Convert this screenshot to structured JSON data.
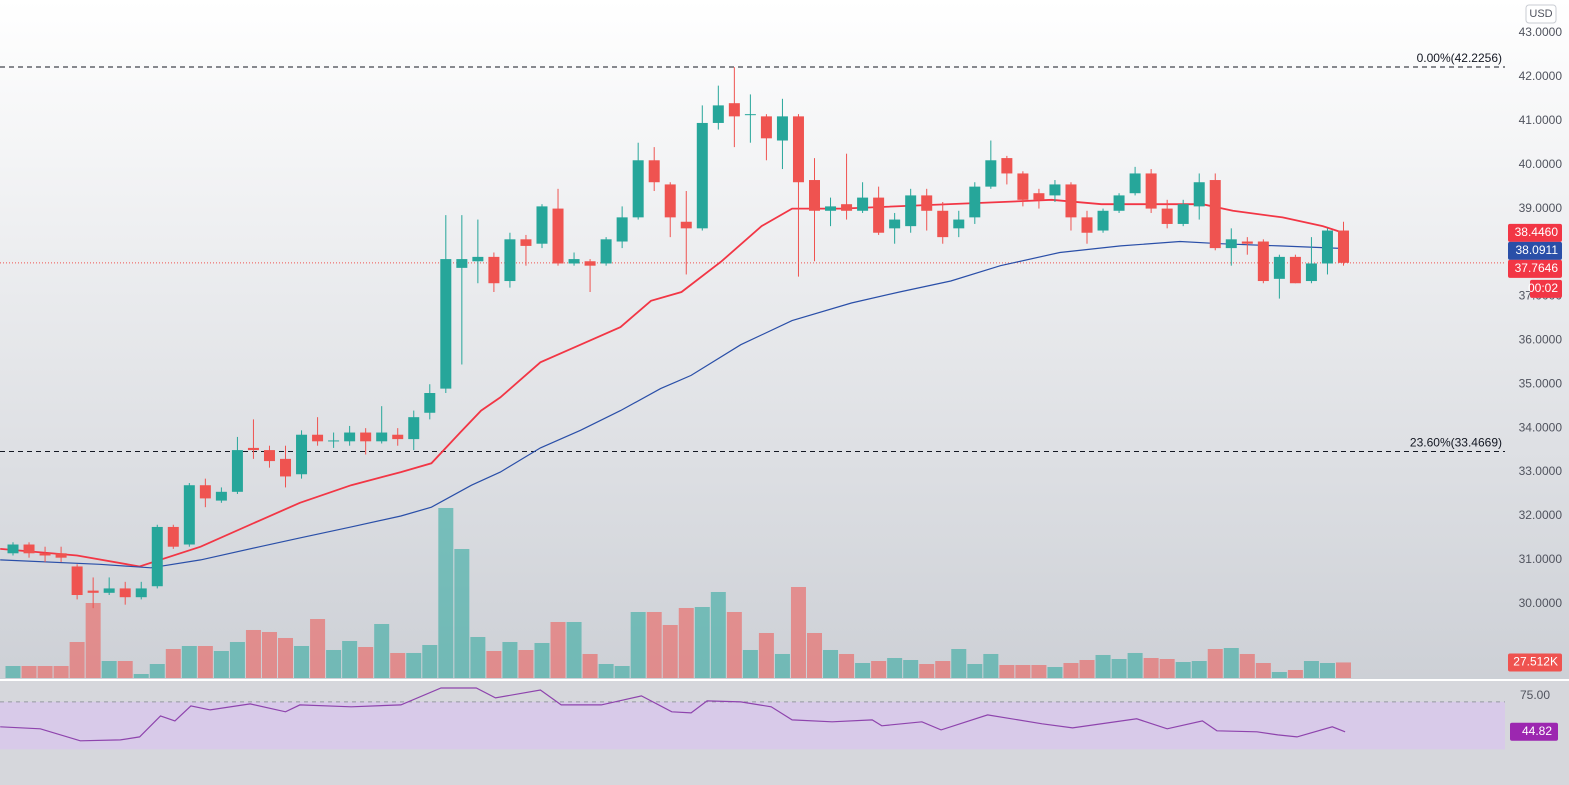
{
  "chart_data": [
    {
      "type": "candlestick",
      "currency": "USD",
      "up_color": "#26a69a",
      "down_color": "#ef5350",
      "ylim": [
        28.31,
        43.75
      ],
      "yticks": [
        {
          "value": 30,
          "label": "30.0000"
        },
        {
          "value": 31,
          "label": "31.0000"
        },
        {
          "value": 32,
          "label": "32.0000"
        },
        {
          "value": 33,
          "label": "33.0000"
        },
        {
          "value": 34,
          "label": "34.0000"
        },
        {
          "value": 35,
          "label": "35.0000"
        },
        {
          "value": 36,
          "label": "36.0000"
        },
        {
          "value": 37,
          "label": "37.0000"
        },
        {
          "value": 38,
          "label": "38.0000"
        },
        {
          "value": 39,
          "label": "39.0000"
        },
        {
          "value": 40,
          "label": "40.0000"
        },
        {
          "value": 41,
          "label": "41.0000"
        },
        {
          "value": 42,
          "label": "42.0000"
        },
        {
          "value": 43,
          "label": "43.0000"
        }
      ],
      "open": [
        31.15,
        31.35,
        31.15,
        31.15,
        30.85,
        30.3,
        30.25,
        30.35,
        30.15,
        30.4,
        31.75,
        31.35,
        32.7,
        32.35,
        32.55,
        33.55,
        33.5,
        33.3,
        32.95,
        33.85,
        33.7,
        33.7,
        33.9,
        33.7,
        33.85,
        33.75,
        34.35,
        34.9,
        37.65,
        37.8,
        37.9,
        37.35,
        38.3,
        38.2,
        39.0,
        37.75,
        37.8,
        37.75,
        38.25,
        38.8,
        40.1,
        39.55,
        38.7,
        38.55,
        40.95,
        41.4,
        41.15,
        41.1,
        40.55,
        41.1,
        39.65,
        38.95,
        39.1,
        38.95,
        39.25,
        38.55,
        38.6,
        39.3,
        38.95,
        38.55,
        38.8,
        39.5,
        40.15,
        39.8,
        39.35,
        39.3,
        39.55,
        38.8,
        38.5,
        38.95,
        39.35,
        39.8,
        39.0,
        38.65,
        39.05,
        39.65,
        38.1,
        38.25,
        38.25,
        37.4,
        37.9,
        37.35,
        37.75,
        38.5
      ],
      "high": [
        31.4,
        31.4,
        31.3,
        31.3,
        30.9,
        30.6,
        30.6,
        30.5,
        30.5,
        31.8,
        31.8,
        32.75,
        32.85,
        32.65,
        33.8,
        34.2,
        33.6,
        33.6,
        33.95,
        34.25,
        33.9,
        34.05,
        34.0,
        34.5,
        34.0,
        34.4,
        35.0,
        38.85,
        38.85,
        38.75,
        38.0,
        38.45,
        38.4,
        39.1,
        39.45,
        38.0,
        37.85,
        38.35,
        39.05,
        40.5,
        40.4,
        39.6,
        39.4,
        41.35,
        41.8,
        42.22,
        41.6,
        41.15,
        41.5,
        41.15,
        40.15,
        39.25,
        40.25,
        39.6,
        39.5,
        38.9,
        39.45,
        39.45,
        39.15,
        38.95,
        39.6,
        40.55,
        40.2,
        39.85,
        39.45,
        39.65,
        39.6,
        38.95,
        39.0,
        39.35,
        39.95,
        39.9,
        39.2,
        39.2,
        39.8,
        39.8,
        38.55,
        38.35,
        38.3,
        37.95,
        37.95,
        38.35,
        38.55,
        38.7
      ],
      "low": [
        31.1,
        31.05,
        30.95,
        30.95,
        30.1,
        29.9,
        30.2,
        29.98,
        30.1,
        30.35,
        31.25,
        31.3,
        32.2,
        32.3,
        32.5,
        33.3,
        33.1,
        32.65,
        32.85,
        33.6,
        33.55,
        33.6,
        33.4,
        33.65,
        33.6,
        33.5,
        34.2,
        34.8,
        35.45,
        37.3,
        37.1,
        37.2,
        37.7,
        38.1,
        37.7,
        37.7,
        37.1,
        37.7,
        38.1,
        38.75,
        39.4,
        38.35,
        37.5,
        38.5,
        40.8,
        40.4,
        40.5,
        40.1,
        39.9,
        37.45,
        37.8,
        38.6,
        38.75,
        38.9,
        38.4,
        38.2,
        38.45,
        38.5,
        38.2,
        38.35,
        38.65,
        39.45,
        39.55,
        39.05,
        39.0,
        39.15,
        38.5,
        38.2,
        38.45,
        38.9,
        39.3,
        38.9,
        38.55,
        38.6,
        38.75,
        38.05,
        37.7,
        37.95,
        37.3,
        36.95,
        37.3,
        37.3,
        37.5,
        37.7
      ],
      "close": [
        31.35,
        31.15,
        31.1,
        31.05,
        30.2,
        30.25,
        30.35,
        30.15,
        30.35,
        31.75,
        31.3,
        32.7,
        32.4,
        32.55,
        33.5,
        33.5,
        33.25,
        32.9,
        33.85,
        33.7,
        33.72,
        33.9,
        33.7,
        33.9,
        33.75,
        34.25,
        34.8,
        37.85,
        37.85,
        37.9,
        37.3,
        38.3,
        38.15,
        39.05,
        37.75,
        37.85,
        37.7,
        38.3,
        38.8,
        40.1,
        39.6,
        38.8,
        38.55,
        40.95,
        41.35,
        41.1,
        41.15,
        40.6,
        41.1,
        39.6,
        38.95,
        39.05,
        38.95,
        39.25,
        38.45,
        38.75,
        39.3,
        38.95,
        38.35,
        38.75,
        39.5,
        40.1,
        39.8,
        39.2,
        39.2,
        39.55,
        38.8,
        38.45,
        38.95,
        39.3,
        39.8,
        39.0,
        38.65,
        39.1,
        39.6,
        38.1,
        38.3,
        38.2,
        37.35,
        37.9,
        37.3,
        37.75,
        38.5,
        37.7646
      ],
      "close_label": "37.7646",
      "countdown": "00:02",
      "volume_lim": [
        0,
        1200000
      ],
      "volume": [
        21240,
        21240,
        21240,
        21240,
        63720,
        132750,
        30090,
        30090,
        7080,
        24780,
        51330,
        56640,
        56640,
        47790,
        63720,
        84960,
        81420,
        70800,
        56640,
        104430,
        49560,
        65490,
        54870,
        95580,
        44250,
        44250,
        58410,
        300900,
        228330,
        72570,
        47790,
        63720,
        49560,
        61950,
        99120,
        99120,
        42480,
        24780,
        21240,
        116820,
        116820,
        93810,
        123900,
        125670,
        152220,
        116820,
        49560,
        79650,
        42480,
        161070,
        79650,
        49560,
        42480,
        26550,
        30090,
        35400,
        31860,
        24780,
        30090,
        51330,
        24780,
        42480,
        23010,
        23010,
        23010,
        19470,
        26550,
        31860,
        40710,
        33630,
        44250,
        35400,
        33630,
        28320,
        30090,
        51330,
        53100,
        42480,
        26550,
        10620,
        14160,
        30090,
        26550,
        27512
      ],
      "volume_label": "27.512K",
      "lines": [
        {
          "color": "#f23645",
          "last_label": "38.4460",
          "x": [
            -0.8,
            4,
            7.9,
            11.7,
            15.4,
            17.9,
            21.1,
            24.2,
            26.1,
            27.9,
            29.2,
            30.4,
            32.9,
            35.4,
            37.9,
            39.8,
            41.7,
            44.2,
            46.7,
            48.6,
            51.7,
            61.7,
            64.8,
            67.9,
            74.2,
            76.1,
            79.2,
            81.7,
            83
          ],
          "values": [
            31.25,
            31.1,
            30.85,
            31.3,
            31.9,
            32.3,
            32.7,
            33.0,
            33.2,
            33.9,
            34.4,
            34.7,
            35.5,
            35.9,
            36.3,
            36.9,
            37.1,
            37.8,
            38.6,
            39.0,
            39.0,
            39.15,
            39.2,
            39.1,
            39.1,
            38.95,
            38.8,
            38.6,
            38.446
          ]
        },
        {
          "color": "#2a4fa8",
          "last_label": "38.0911",
          "x": [
            -0.8,
            5.4,
            8.6,
            11.7,
            15.4,
            17.9,
            21.1,
            24.2,
            26.1,
            28.6,
            30.4,
            32.9,
            35.4,
            37.9,
            40.4,
            42.3,
            45.4,
            48.6,
            52.3,
            55.3,
            58.5,
            61.6,
            65.3,
            69.1,
            72.8,
            75.3,
            79.0,
            83
          ],
          "values": [
            31.0,
            30.9,
            30.82,
            31.0,
            31.3,
            31.5,
            31.75,
            32.0,
            32.2,
            32.7,
            33.0,
            33.55,
            33.95,
            34.4,
            34.9,
            35.2,
            35.9,
            36.45,
            36.85,
            37.1,
            37.35,
            37.7,
            38.0,
            38.15,
            38.25,
            38.2,
            38.15,
            38.0911
          ]
        }
      ],
      "levels": [
        {
          "value": 42.2256,
          "label": "0.00%(42.2256)"
        },
        {
          "value": 33.4669,
          "label": "23.60%(33.4669)"
        }
      ]
    },
    {
      "type": "line",
      "color": "#8e44ad",
      "ylim": [
        0,
        88.4
      ],
      "yticks": [
        {
          "value": 75,
          "label": "75.00"
        }
      ],
      "band": [
        30,
        70
      ],
      "x": [
        -0.8,
        1.7,
        4.2,
        6.7,
        7.9,
        9.2,
        10.1,
        11.1,
        12.3,
        14.8,
        17,
        17.9,
        21.1,
        24.2,
        26.7,
        28.9,
        30.1,
        32.9,
        34.2,
        36.7,
        39.2,
        41.1,
        42.3,
        43.3,
        45.4,
        47.3,
        48.6,
        51.1,
        53.6,
        54.2,
        56.7,
        57.9,
        60.8,
        64.2,
        66.1,
        70.1,
        72,
        74.2,
        75.1,
        77.6,
        78.9,
        80.1,
        82.3,
        83.1
      ],
      "values": [
        49.0,
        47.3,
        37.2,
        38.0,
        40.5,
        58.2,
        54.0,
        66.6,
        63.2,
        68.3,
        61.6,
        67.4,
        65.8,
        67.4,
        81.7,
        81.7,
        73.3,
        80.0,
        67.4,
        67.4,
        75,
        61.6,
        60.7,
        70.8,
        70.0,
        65.8,
        54.8,
        53.2,
        54.8,
        49.8,
        53.2,
        46.4,
        59.0,
        51.5,
        48.1,
        55.7,
        47.3,
        54.0,
        45.6,
        44.8,
        42.2,
        40.5,
        49.0,
        44.82
      ]
    }
  ]
}
